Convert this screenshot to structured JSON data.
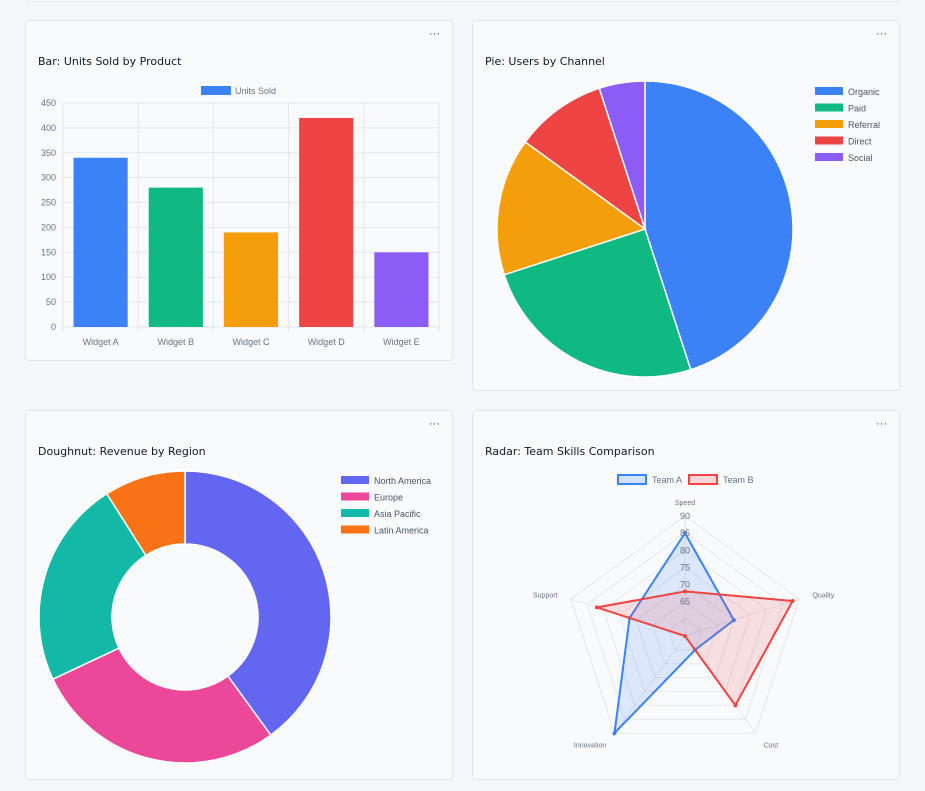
{
  "colors": {
    "blue": "#3b82f6",
    "green": "#10b981",
    "amber": "#f59e0b",
    "red": "#ef4444",
    "violet": "#8b5cf6",
    "indigo": "#6366f1",
    "pink": "#ec4899",
    "teal": "#14b8a6",
    "orange": "#f97316"
  },
  "cards": {
    "bar": {
      "title": "Bar: Units Sold by Product",
      "menu": "···"
    },
    "pie": {
      "title": "Pie: Users by Channel",
      "menu": "···"
    },
    "doughnut": {
      "title": "Doughnut: Revenue by Region",
      "menu": "···"
    },
    "radar": {
      "title": "Radar: Team Skills Comparison",
      "menu": "···"
    }
  },
  "chart_data": [
    {
      "type": "bar",
      "title": "Bar: Units Sold by Product",
      "categories": [
        "Widget A",
        "Widget B",
        "Widget C",
        "Widget D",
        "Widget E"
      ],
      "series": [
        {
          "name": "Units Sold",
          "values": [
            340,
            280,
            190,
            420,
            150
          ]
        }
      ],
      "bar_colors": [
        "#3b82f6",
        "#10b981",
        "#f59e0b",
        "#ef4444",
        "#8b5cf6"
      ],
      "legend_color": "#3b82f6",
      "ylim": [
        0,
        450
      ],
      "yticks": [
        0,
        50,
        100,
        150,
        200,
        250,
        300,
        350,
        400,
        450
      ],
      "grid": true,
      "legend": "top"
    },
    {
      "type": "pie",
      "title": "Pie: Users by Channel",
      "labels": [
        "Organic",
        "Paid",
        "Referral",
        "Direct",
        "Social"
      ],
      "values": [
        45,
        25,
        15,
        10,
        5
      ],
      "colors": [
        "#3b82f6",
        "#10b981",
        "#f59e0b",
        "#ef4444",
        "#8b5cf6"
      ],
      "legend": "right"
    },
    {
      "type": "doughnut",
      "title": "Doughnut: Revenue by Region",
      "labels": [
        "North America",
        "Europe",
        "Asia Pacific",
        "Latin America"
      ],
      "values": [
        40,
        28,
        23,
        9
      ],
      "colors": [
        "#6366f1",
        "#ec4899",
        "#14b8a6",
        "#f97316"
      ],
      "legend": "right"
    },
    {
      "type": "radar",
      "title": "Radar: Team Skills Comparison",
      "axes": [
        "Speed",
        "Quality",
        "Cost",
        "Innovation",
        "Support"
      ],
      "series": [
        {
          "name": "Team A",
          "values": [
            85,
            70,
            60,
            90,
            72
          ],
          "color": "#3b82f6"
        },
        {
          "name": "Team B",
          "values": [
            68,
            88,
            80,
            55,
            82
          ],
          "color": "#ef4444"
        }
      ],
      "rlim": [
        55,
        90
      ],
      "rticks": [
        65,
        70,
        75,
        80,
        85,
        90
      ],
      "legend": "top"
    }
  ]
}
